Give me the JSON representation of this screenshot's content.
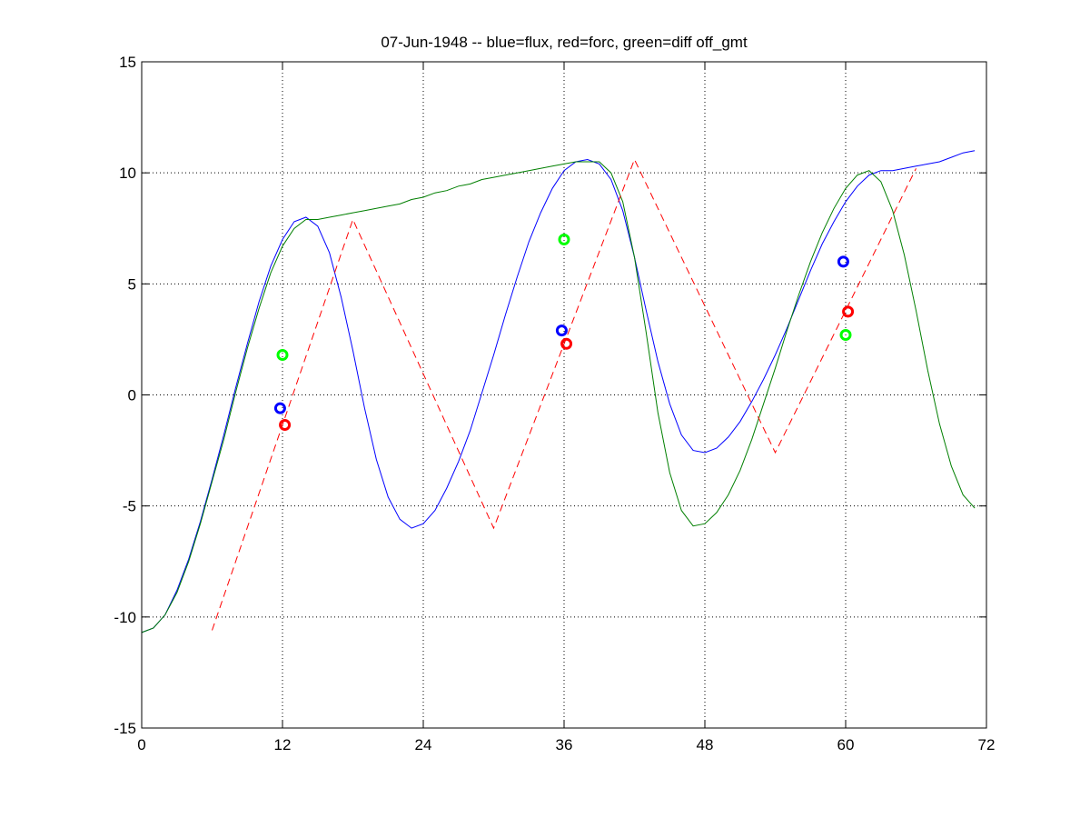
{
  "chart_data": {
    "type": "line",
    "title": "07-Jun-1948 -- blue=flux, red=forc, green=diff off_gmt",
    "xlabel": "",
    "ylabel": "",
    "xlim": [
      0,
      72
    ],
    "ylim": [
      -15,
      15
    ],
    "xticks": [
      0,
      12,
      24,
      36,
      48,
      60,
      72
    ],
    "yticks": [
      -15,
      -10,
      -5,
      0,
      5,
      10,
      15
    ],
    "xtick_labels": [
      "0",
      "12",
      "24",
      "36",
      "48",
      "60",
      "72"
    ],
    "ytick_labels": [
      "-15",
      "-10",
      "-5",
      "0",
      "5",
      "10",
      "15"
    ],
    "grid": true,
    "legend": "none",
    "series": [
      {
        "color": "#0000ff",
        "style": "solid",
        "x": [
          0,
          1,
          2,
          3,
          4,
          5,
          6,
          7,
          8,
          9,
          10,
          11,
          12,
          13,
          14,
          15,
          16,
          17,
          18,
          19,
          20,
          21,
          22,
          23,
          24,
          25,
          26,
          27,
          28,
          29,
          30,
          31,
          32,
          33,
          34,
          35,
          36,
          37,
          38,
          39,
          40,
          41,
          42,
          43,
          44,
          45,
          46,
          47,
          48,
          49,
          50,
          51,
          52,
          53,
          54,
          55,
          56,
          57,
          58,
          59,
          60,
          61,
          62,
          63,
          64,
          65,
          66,
          67,
          68,
          69,
          70,
          71
        ],
        "y": [
          -10.7,
          -10.5,
          -9.9,
          -8.8,
          -7.4,
          -5.7,
          -3.8,
          -1.8,
          0.3,
          2.3,
          4.2,
          5.8,
          7.0,
          7.8,
          8.0,
          7.6,
          6.4,
          4.4,
          2.0,
          -0.6,
          -2.9,
          -4.6,
          -5.6,
          -6.0,
          -5.8,
          -5.2,
          -4.2,
          -3.0,
          -1.6,
          0.1,
          1.8,
          3.6,
          5.3,
          6.9,
          8.2,
          9.3,
          10.1,
          10.5,
          10.6,
          10.4,
          9.7,
          8.3,
          6.2,
          3.8,
          1.5,
          -0.4,
          -1.8,
          -2.5,
          -2.6,
          -2.4,
          -1.9,
          -1.2,
          -0.3,
          0.7,
          1.8,
          3.0,
          4.3,
          5.6,
          6.8,
          7.8,
          8.7,
          9.4,
          9.9,
          10.1,
          10.1,
          10.2,
          10.3,
          10.4,
          10.5,
          10.7,
          10.9,
          11.0
        ]
      },
      {
        "color": "#007f00",
        "style": "solid",
        "x": [
          0,
          1,
          2,
          3,
          4,
          5,
          6,
          7,
          8,
          9,
          10,
          11,
          12,
          13,
          14,
          15,
          16,
          17,
          18,
          19,
          20,
          21,
          22,
          23,
          24,
          25,
          26,
          27,
          28,
          29,
          30,
          31,
          32,
          33,
          34,
          35,
          36,
          37,
          38,
          39,
          40,
          41,
          42,
          43,
          44,
          45,
          46,
          47,
          48,
          49,
          50,
          51,
          52,
          53,
          54,
          55,
          56,
          57,
          58,
          59,
          60,
          61,
          62,
          63,
          64,
          65,
          66,
          67,
          68,
          69,
          70,
          71
        ],
        "y": [
          -10.7,
          -10.5,
          -9.9,
          -8.9,
          -7.5,
          -5.8,
          -3.9,
          -2.0,
          0.1,
          2.1,
          3.9,
          5.5,
          6.7,
          7.5,
          7.9,
          7.9,
          8.0,
          8.1,
          8.2,
          8.3,
          8.4,
          8.5,
          8.6,
          8.8,
          8.9,
          9.1,
          9.2,
          9.4,
          9.5,
          9.7,
          9.8,
          9.9,
          10.0,
          10.1,
          10.2,
          10.3,
          10.4,
          10.5,
          10.5,
          10.5,
          10.0,
          8.7,
          6.2,
          2.8,
          -0.8,
          -3.5,
          -5.2,
          -5.9,
          -5.8,
          -5.3,
          -4.5,
          -3.4,
          -2.0,
          -0.4,
          1.2,
          2.9,
          4.5,
          6.0,
          7.3,
          8.4,
          9.3,
          9.9,
          10.1,
          9.6,
          8.3,
          6.3,
          3.8,
          1.1,
          -1.3,
          -3.2,
          -4.5,
          -5.1
        ]
      },
      {
        "color": "#ff0000",
        "style": "dashed",
        "x": [
          6,
          18,
          30,
          42,
          54,
          66
        ],
        "y": [
          -10.6,
          7.9,
          -6.0,
          10.6,
          -2.6,
          10.2
        ]
      }
    ],
    "points": [
      {
        "color": "#0000ff",
        "x": 11.8,
        "y": -0.6
      },
      {
        "color": "#ff0000",
        "x": 12.2,
        "y": -1.35
      },
      {
        "color": "#00ff00",
        "x": 12.0,
        "y": 1.8
      },
      {
        "color": "#0000ff",
        "x": 35.8,
        "y": 2.9
      },
      {
        "color": "#ff0000",
        "x": 36.2,
        "y": 2.3
      },
      {
        "color": "#00ff00",
        "x": 36.0,
        "y": 7.0
      },
      {
        "color": "#0000ff",
        "x": 59.8,
        "y": 6.0
      },
      {
        "color": "#ff0000",
        "x": 60.2,
        "y": 3.75
      },
      {
        "color": "#00ff00",
        "x": 60.0,
        "y": 2.7
      }
    ]
  }
}
